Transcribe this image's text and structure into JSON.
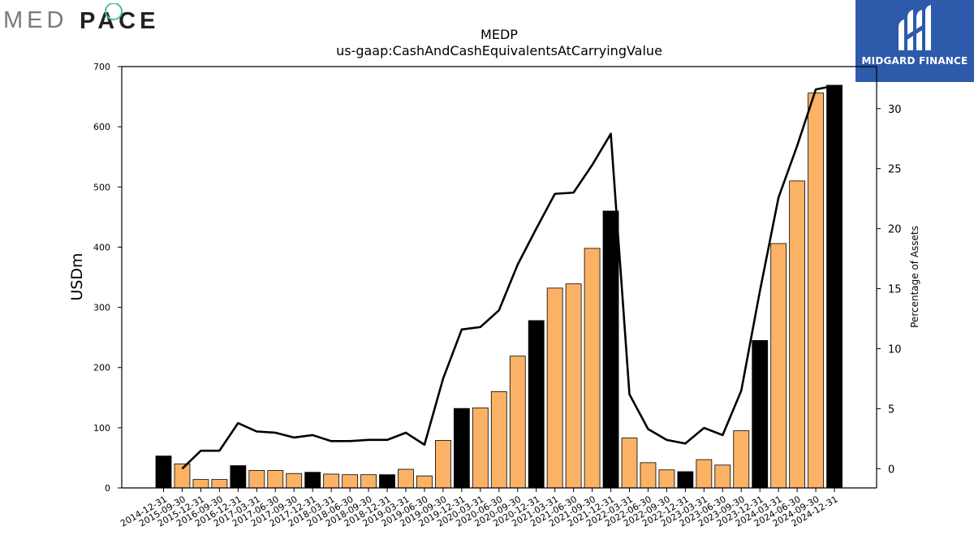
{
  "logos": {
    "left_brand": "MEDPACE",
    "left_brand_part1": "MED",
    "left_brand_part2": "PACE",
    "right_brand": "MIDGARD FINANCE"
  },
  "colors": {
    "bar_primary": "#000000",
    "bar_secondary": "#fbb265",
    "line": "#000000",
    "brand_blue": "#2d5aab",
    "medpace_teal": "#4bbfa0"
  },
  "chart_data": {
    "type": "bar",
    "title": "MEDP",
    "subtitle": "us-gaap:CashAndCashEquivalentsAtCarryingValue",
    "ylabel": "USDm",
    "ylabel_right": "Percentage of Assets",
    "ylim": [
      0,
      700
    ],
    "ylim_right": [
      -1.6,
      33.5
    ],
    "yticks": [
      0,
      100,
      200,
      300,
      400,
      500,
      600,
      700
    ],
    "yticks_right": [
      0,
      5,
      10,
      15,
      20,
      25,
      30
    ],
    "categories": [
      "2014-12-31",
      "2015-09-30",
      "2015-12-31",
      "2016-09-30",
      "2016-12-31",
      "2017-03-31",
      "2017-06-30",
      "2017-09-30",
      "2017-12-31",
      "2018-03-31",
      "2018-06-30",
      "2018-09-30",
      "2018-12-31",
      "2019-03-31",
      "2019-06-30",
      "2019-09-30",
      "2019-12-31",
      "2020-03-31",
      "2020-06-30",
      "2020-09-30",
      "2020-12-31",
      "2021-03-31",
      "2021-06-30",
      "2021-09-30",
      "2021-12-31",
      "2022-03-31",
      "2022-06-30",
      "2022-09-30",
      "2022-12-31",
      "2023-03-31",
      "2023-06-30",
      "2023-09-30",
      "2023-12-31",
      "2024-03-31",
      "2024-06-30",
      "2024-09-30",
      "2024-12-31"
    ],
    "series": [
      {
        "axis": "left",
        "style": "bar",
        "values": [
          53,
          40,
          14,
          14,
          37,
          29,
          29,
          24,
          26,
          23,
          22,
          22,
          22,
          31,
          20,
          79,
          132,
          133,
          160,
          219,
          278,
          332,
          339,
          398,
          460,
          83,
          42,
          30,
          27,
          47,
          38,
          95,
          245,
          406,
          510,
          656,
          669
        ],
        "year_end": [
          true,
          false,
          false,
          false,
          true,
          false,
          false,
          false,
          true,
          false,
          false,
          false,
          true,
          false,
          false,
          false,
          true,
          false,
          false,
          false,
          true,
          false,
          false,
          false,
          true,
          false,
          false,
          false,
          true,
          false,
          false,
          false,
          true,
          false,
          false,
          false,
          true
        ]
      },
      {
        "axis": "right",
        "style": "line",
        "values": [
          null,
          0.0,
          1.5,
          1.5,
          3.8,
          3.1,
          3.0,
          2.6,
          2.8,
          2.3,
          2.3,
          2.4,
          2.4,
          3.0,
          2.0,
          7.5,
          11.6,
          11.8,
          13.2,
          17.0,
          20.0,
          22.9,
          23.0,
          25.3,
          27.9,
          6.2,
          3.3,
          2.4,
          2.1,
          3.4,
          2.8,
          6.5,
          14.8,
          22.6,
          26.9,
          31.6,
          31.9
        ]
      }
    ]
  }
}
